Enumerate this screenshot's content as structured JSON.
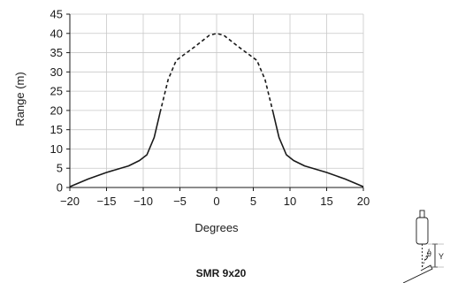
{
  "chart_data": {
    "type": "line",
    "title": "",
    "caption": "SMR 9x20",
    "xlabel": "Degrees",
    "ylabel": "Range (m)",
    "xlim": [
      -20,
      20
    ],
    "ylim": [
      0,
      45
    ],
    "xticks": [
      -20,
      -15,
      -10,
      -5,
      0,
      5,
      10,
      15,
      20
    ],
    "yticks": [
      0,
      5,
      10,
      15,
      20,
      25,
      30,
      35,
      40,
      45
    ],
    "xtick_labels": [
      "−20",
      "−15",
      "−10",
      "−5",
      "0",
      "5",
      "10",
      "15",
      "20"
    ],
    "grid": true,
    "series": [
      {
        "style": "solid",
        "points": [
          [
            -20,
            0.2
          ],
          [
            -17.5,
            2.2
          ],
          [
            -15,
            3.9
          ],
          [
            -12,
            5.6
          ],
          [
            -10.5,
            7
          ],
          [
            -9.5,
            8.5
          ],
          [
            -8.5,
            13
          ],
          [
            -7.7,
            19.5
          ]
        ]
      },
      {
        "style": "dashed",
        "points": [
          [
            -7.7,
            19.5
          ],
          [
            -6.6,
            28
          ],
          [
            -5.5,
            33
          ],
          [
            -3,
            36.5
          ],
          [
            -1,
            39.5
          ],
          [
            0,
            40
          ],
          [
            1,
            39.5
          ],
          [
            3,
            36.5
          ],
          [
            5.5,
            33
          ],
          [
            6.6,
            28
          ],
          [
            7.7,
            19.5
          ]
        ]
      },
      {
        "style": "solid",
        "points": [
          [
            7.7,
            19.5
          ],
          [
            8.5,
            13
          ],
          [
            9.5,
            8.5
          ],
          [
            10.5,
            7
          ],
          [
            12,
            5.6
          ],
          [
            15,
            3.9
          ],
          [
            17.5,
            2.2
          ],
          [
            20,
            0.2
          ]
        ]
      }
    ]
  },
  "sensor_diagram": {
    "theta_label": "θ",
    "y_label": "Y"
  }
}
